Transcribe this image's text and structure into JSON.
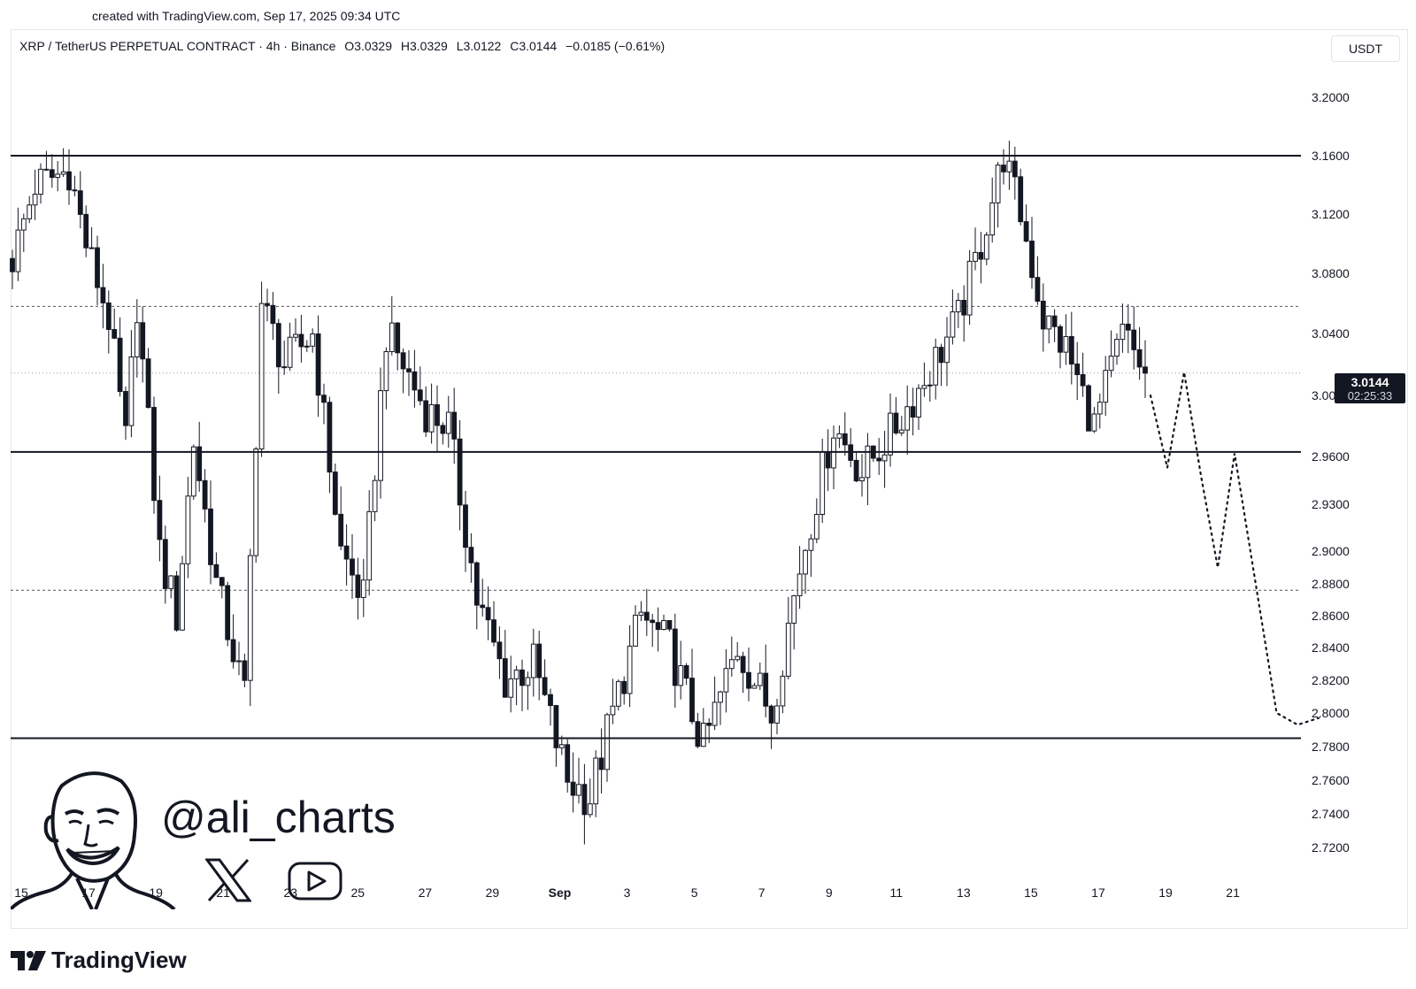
{
  "watermark": "created with TradingView.com, Sep 17, 2025 09:34 UTC",
  "header": {
    "symbol": "XRP / TetherUS PERPETUAL CONTRACT · 4h · Binance",
    "open": "O3.0329",
    "high": "H3.0329",
    "low": "L3.0122",
    "close": "C3.0144",
    "change": "−0.0185 (−0.61%)"
  },
  "currency": "USDT",
  "last_price": {
    "value": "3.0144",
    "countdown": "02:25:33"
  },
  "author": {
    "handle": "@ali_charts"
  },
  "brand": {
    "name": "TradingView"
  },
  "chart_data": {
    "type": "candlestick",
    "title": "XRP / TetherUS PERPETUAL CONTRACT · 4h · Binance",
    "ylim": [
      2.7,
      3.22
    ],
    "y_ticks": [
      "3.2000",
      "3.1600",
      "3.1200",
      "3.0800",
      "3.0400",
      "3.0000",
      "2.9600",
      "2.9300",
      "2.9000",
      "2.8800",
      "2.8600",
      "2.8400",
      "2.8200",
      "2.8000",
      "2.7800",
      "2.7600",
      "2.7400",
      "2.7200"
    ],
    "x_ticks": [
      "15",
      "17",
      "19",
      "21",
      "23",
      "25",
      "27",
      "29",
      "Sep",
      "3",
      "5",
      "7",
      "9",
      "11",
      "13",
      "15",
      "17",
      "19",
      "21"
    ],
    "levels": [
      3.16,
      2.963,
      2.785
    ],
    "dashed_levels": [
      3.058,
      2.876
    ],
    "last_price_line": 3.0144,
    "anchors": [
      [
        0,
        3.09
      ],
      [
        4,
        3.14
      ],
      [
        10,
        3.15
      ],
      [
        13,
        3.1
      ],
      [
        17,
        3.05
      ],
      [
        20,
        2.97
      ],
      [
        22,
        3.06
      ],
      [
        26,
        2.9
      ],
      [
        29,
        2.86
      ],
      [
        32,
        2.97
      ],
      [
        36,
        2.88
      ],
      [
        41,
        2.81
      ],
      [
        44,
        3.06
      ],
      [
        48,
        3.02
      ],
      [
        53,
        3.04
      ],
      [
        58,
        2.9
      ],
      [
        62,
        2.87
      ],
      [
        66,
        3.04
      ],
      [
        69,
        3.02
      ],
      [
        73,
        2.99
      ],
      [
        77,
        2.98
      ],
      [
        82,
        2.87
      ],
      [
        87,
        2.82
      ],
      [
        92,
        2.83
      ],
      [
        98,
        2.76
      ],
      [
        102,
        2.75
      ],
      [
        106,
        2.8
      ],
      [
        111,
        2.86
      ],
      [
        116,
        2.84
      ],
      [
        122,
        2.78
      ],
      [
        128,
        2.84
      ],
      [
        134,
        2.8
      ],
      [
        139,
        2.89
      ],
      [
        145,
        2.98
      ],
      [
        150,
        2.95
      ],
      [
        156,
        2.98
      ],
      [
        161,
        3.01
      ],
      [
        167,
        3.05
      ],
      [
        171,
        3.1
      ],
      [
        175,
        3.16
      ],
      [
        178,
        3.12
      ],
      [
        182,
        3.05
      ],
      [
        186,
        3.03
      ],
      [
        191,
        2.98
      ],
      [
        196,
        3.04
      ],
      [
        200,
        3.015
      ]
    ],
    "forecast_path": [
      [
        3.0,
        0
      ],
      [
        2.953,
        1
      ],
      [
        3.015,
        2
      ],
      [
        2.948,
        3
      ],
      [
        2.89,
        4
      ],
      [
        2.962,
        5
      ],
      [
        2.8,
        6
      ],
      [
        2.793,
        7
      ],
      [
        2.797,
        8
      ]
    ]
  }
}
